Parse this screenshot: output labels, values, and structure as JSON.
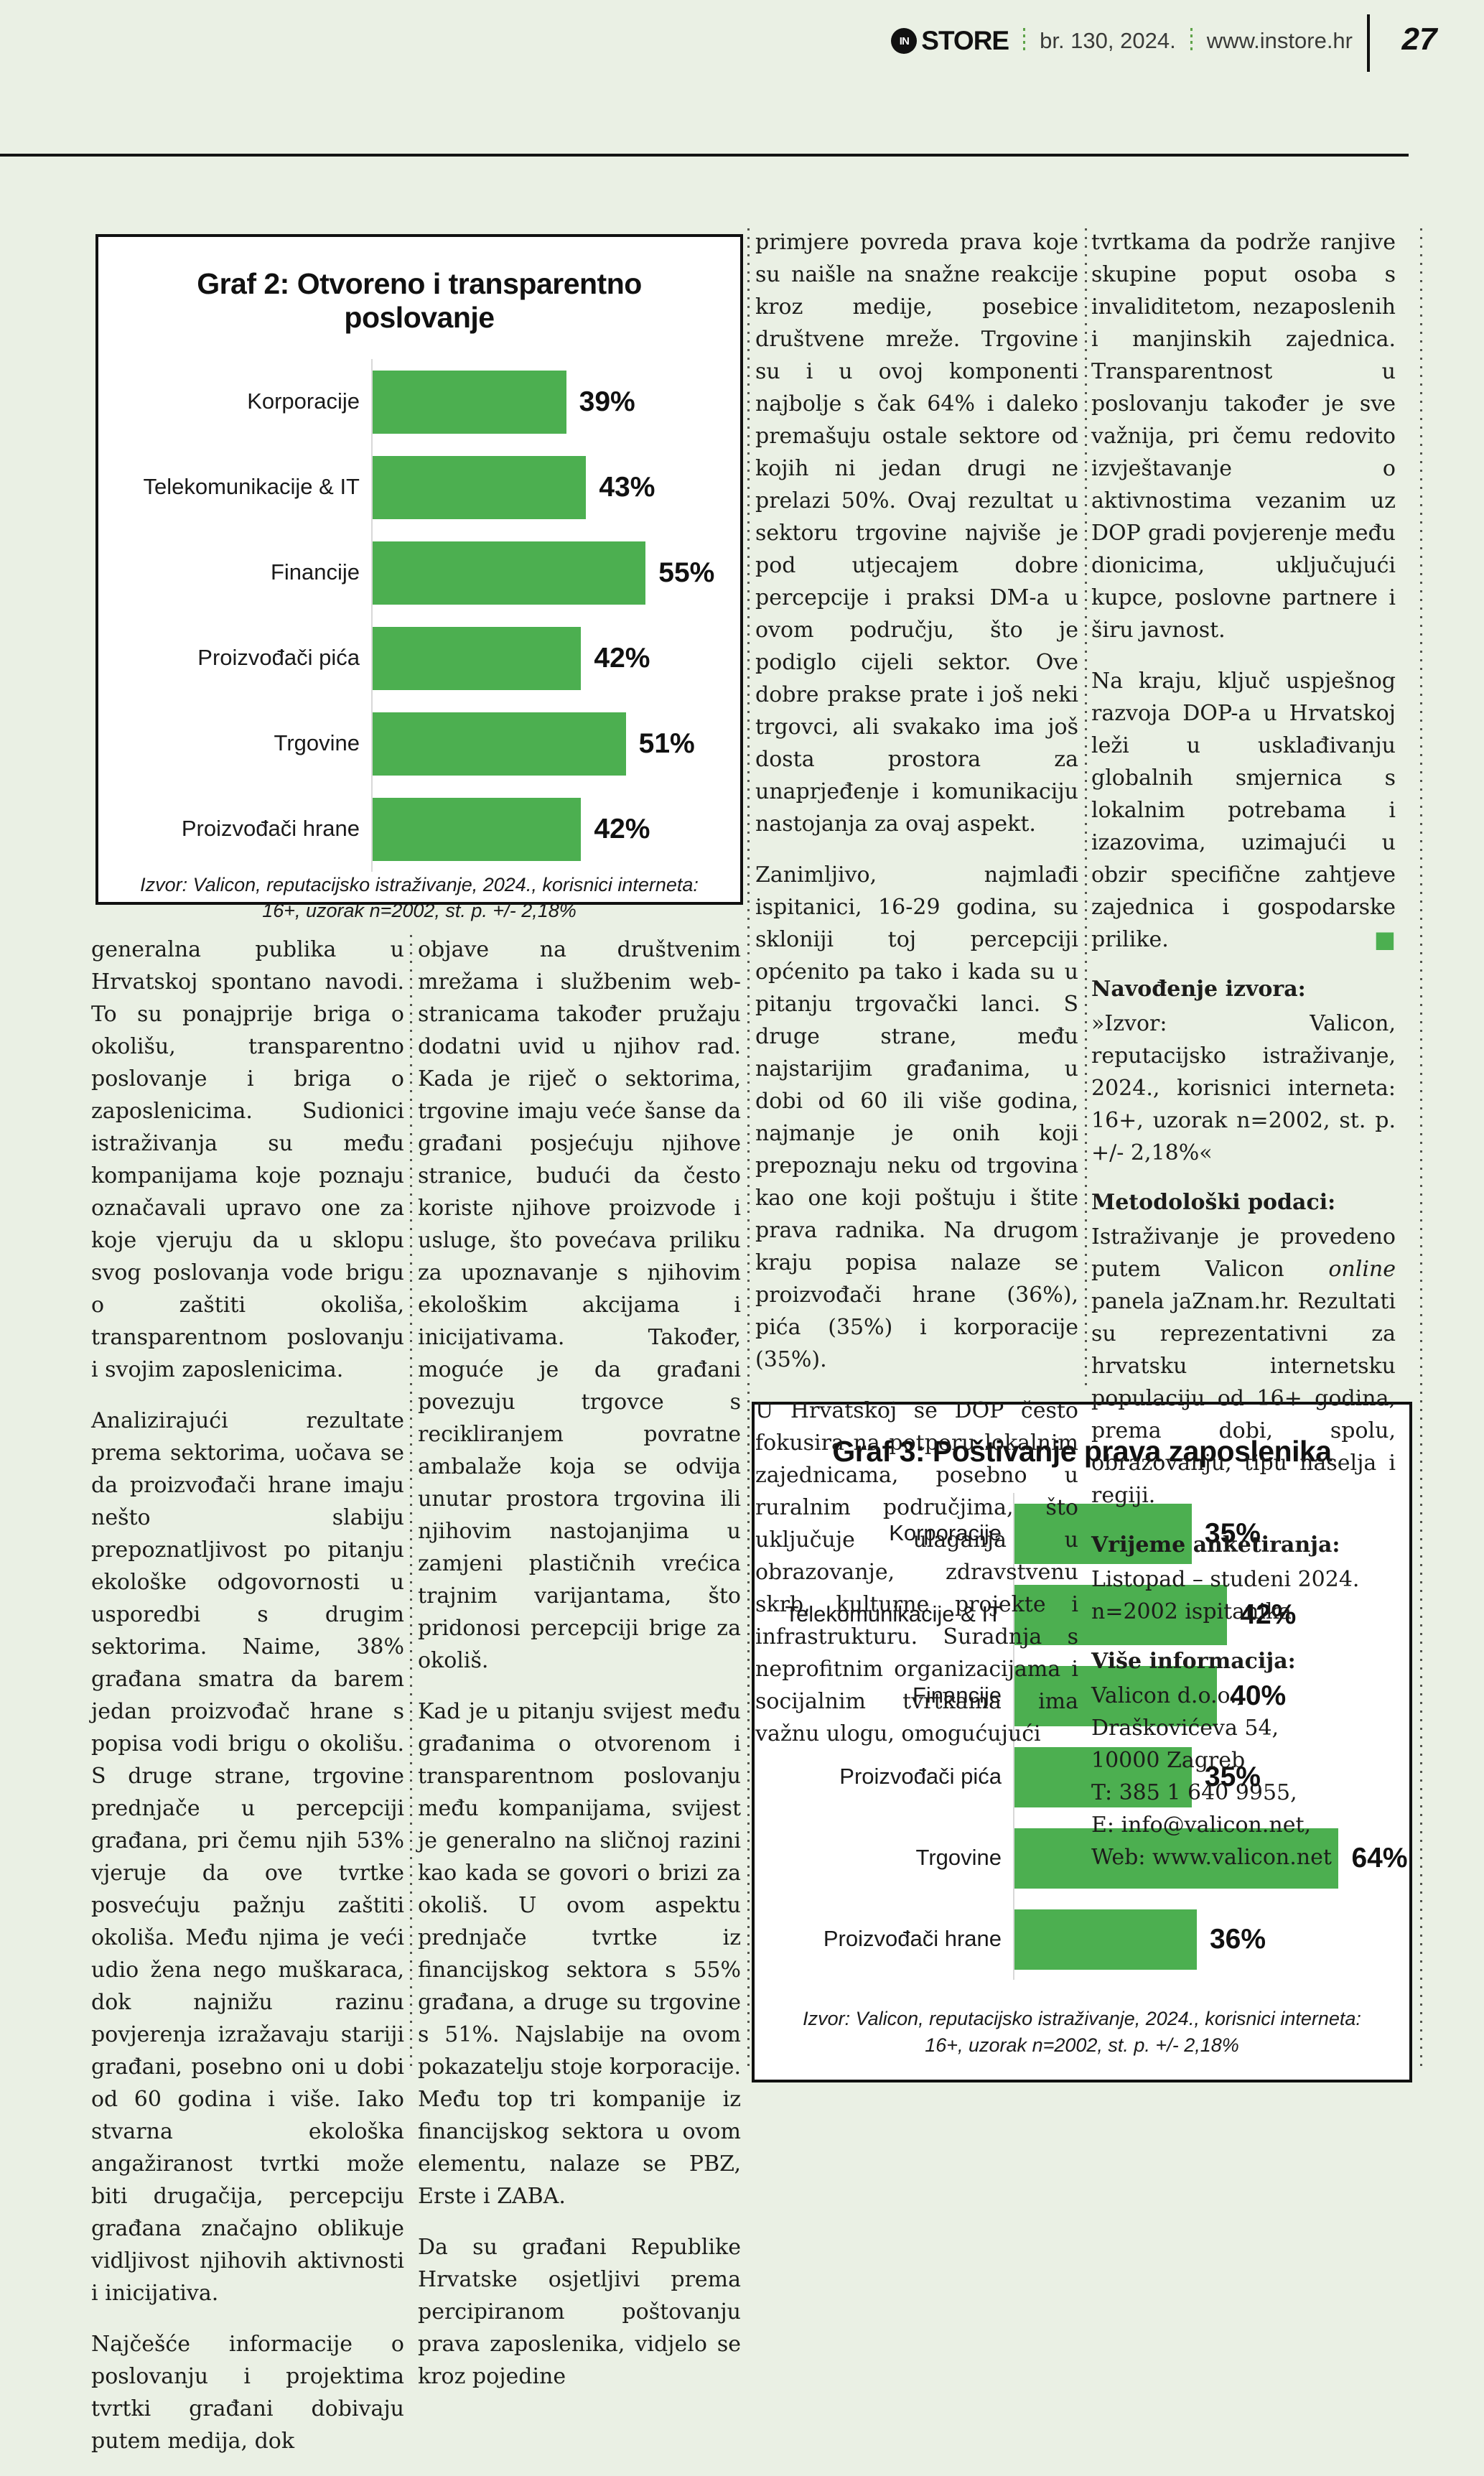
{
  "header": {
    "logo_monogram": "IN",
    "logo_text": "STORE",
    "issue": "br. 130, 2024.",
    "website": "www.instore.hr",
    "page_number": "27"
  },
  "colors": {
    "bar_green": "#4caf50",
    "page_background": "#eaf0e4",
    "end_marker_green": "#4caf50"
  },
  "chart_data": [
    {
      "type": "bar",
      "orientation": "horizontal",
      "title": "Graf 2: Otvoreno i transparentno poslovanje",
      "categories": [
        "Korporacije",
        "Telekomunikacije & IT",
        "Financije",
        "Proizvođači pića",
        "Trgovine",
        "Proizvođači hrane"
      ],
      "values": [
        39,
        43,
        55,
        42,
        51,
        42
      ],
      "unit": "%",
      "xlim": [
        0,
        70
      ],
      "grid": false,
      "legend": "none",
      "bar_color": "#4caf50",
      "source": "Izvor: Valicon, reputacijsko istraživanje, 2024., korisnici interneta: 16+, uzorak n=2002, st. p. +/- 2,18%"
    },
    {
      "type": "bar",
      "orientation": "horizontal",
      "title": "Graf 3: Poštivanje prava zaposlenika",
      "categories": [
        "Korporacije",
        "Telekomunikacije & IT",
        "Financije",
        "Proizvođači pića",
        "Trgovine",
        "Proizvođači hrane"
      ],
      "values": [
        35,
        42,
        40,
        35,
        64,
        36
      ],
      "unit": "%",
      "xlim": [
        0,
        74
      ],
      "grid": false,
      "legend": "none",
      "bar_color": "#4caf50",
      "source": "Izvor: Valicon, reputacijsko istraživanje, 2024., korisnici interneta: 16+, uzorak n=2002, st. p. +/- 2,18%"
    }
  ],
  "article": {
    "columns": [
      {
        "blocks": [
          {
            "type": "p",
            "text": "generalna publika u Hrvatskoj spontano navodi. To su ponajprije briga o okolišu, transparentno poslovanje i briga o zaposlenicima. Sudionici istraživanja su među kompanijama koje poznaju označavali upravo one za koje vjeruju da u sklopu svog poslovanja vode brigu o zaštiti okoliša, transparentnom poslovanju i svojim zaposlenicima."
          },
          {
            "type": "p",
            "text": "Analizirajući rezultate prema sektorima, uočava se da proizvođači hrane imaju nešto slabiju prepoznatljivost po pitanju ekološke odgovornosti u usporedbi s drugim sektorima. Naime, 38% građana smatra da barem jedan proizvođač hrane s popisa vodi brigu o okolišu. S druge strane, trgovine prednjače u percepciji građana, pri čemu njih 53% vjeruje da ove tvrtke posvećuju pažnju zaštiti okoliša. Među njima je veći udio žena nego muškaraca, dok najnižu razinu povjerenja izražavaju stariji građani, posebno oni u dobi od 60 godina i više. Iako stvarna ekološka angažiranost tvrtki može biti drugačija, percepciju građana značajno oblikuje vidljivost njihovih aktivnosti i inicijativa."
          },
          {
            "type": "p",
            "text": "Najčešće informacije o poslovanju i projektima tvrtki građani dobivaju putem medija, dok"
          }
        ]
      },
      {
        "blocks": [
          {
            "type": "p",
            "text": "objave na društvenim mrežama i službenim web-stranicama također pružaju dodatni uvid u njihov rad. Kada je riječ o sektorima, trgovine imaju veće šanse da građani posjećuju njihove stranice, budući da često koriste njihove proizvode i usluge, što povećava priliku za upoznavanje s njihovim ekološkim akcijama i inicijativama. Također, moguće je da građani povezuju trgovce s recikliranjem povratne ambalaže koja se odvija unutar prostora trgovina ili njihovim nastojanjima u zamjeni plastičnih vrećica trajnim varijantama, što pridonosi percepciji brige za okoliš."
          },
          {
            "type": "p",
            "text": "Kad je u pitanju svijest među građanima o otvorenom i transparentnom poslovanju među kompanijama, svijest je generalno na sličnoj razini kao kada se govori o brizi za okoliš. U ovom aspektu prednjače tvrtke iz financijskog sektora s 55% građana, a druge su trgovine s 51%. Najslabije na ovom pokazatelju stoje korporacije. Među top tri kompanije iz financijskog sektora u ovom elementu, nalaze se PBZ, Erste i ZABA."
          },
          {
            "type": "p",
            "text": "Da su građani Republike Hrvatske osjetljivi prema percipiranom poštovanju prava zaposlenika, vidjelo se kroz pojedine"
          }
        ]
      },
      {
        "blocks": [
          {
            "type": "p",
            "text": "primjere povreda prava koje su naišle na snažne reakcije kroz medije, posebice društvene mreže. Trgovine su i u ovoj komponenti najbolje s čak 64% i daleko premašuju ostale sektore od kojih ni jedan drugi ne prelazi 50%. Ovaj rezultat u sektoru trgovine najviše je pod utjecajem dobre percepcije i praksi DM-a u ovom području, što je podiglo cijeli sektor. Ove dobre prakse prate i još neki trgovci, ali svakako ima još dosta prostora za unaprjeđenje i komunikaciju nastojanja za ovaj aspekt."
          },
          {
            "type": "p",
            "text": "Zanimljivo, najmlađi ispitanici, 16-29 godina, su skloniji toj percepciji općenito pa tako i kada su u pitanju trgovački lanci. S druge strane, među najstarijim građanima, u dobi od 60 ili više godina, najmanje je onih koji prepoznaju neku od trgovina kao one koji poštuju i štite prava radnika. Na drugom kraju popisa nalaze se proizvođači hrane (36%), pića (35%) i korporacije (35%)."
          },
          {
            "type": "p",
            "text": "U Hrvatskoj se DOP često fokusira na potporu lokalnim zajednicama, posebno u ruralnim područjima, što uključuje ulaganja u obrazovanje, zdravstvenu skrb, kulturne projekte i infrastrukturu. Suradnja s neprofitnim organizacijama i socijalnim tvrtkama ima važnu ulogu, omogućujući"
          }
        ]
      },
      {
        "blocks": [
          {
            "type": "p",
            "text": "tvrtkama da podrže ranjive skupine poput osoba s invaliditetom, nezaposlenih i manjinskih zajednica. Transparentnost u poslovanju također je sve važnija, pri čemu redovito izvještavanje o aktivnostima vezanim uz DOP gradi povjerenje među dionicima, uključujući kupce, poslovne partnere i širu javnost."
          },
          {
            "type": "p",
            "text": "Na kraju, ključ uspješnog razvoja DOP-a u Hrvatskoj leži u usklađivanju globalnih smjernica s lokalnim potrebama i izazovima, uzimajući u obzir specifične zahtjeve zajednica i gospodarske prilike.",
            "end_marker": "■"
          },
          {
            "type": "h",
            "text": "Navođenje izvora:"
          },
          {
            "type": "p",
            "text": "»Izvor: Valicon, reputacijsko istraživanje, 2024., korisnici interneta: 16+, uzorak n=2002, st. p. +/- 2,18%«"
          },
          {
            "type": "h",
            "text": "Metodološki podaci:"
          },
          {
            "type": "rich",
            "segments": [
              {
                "text": "Istraživanje je provedeno putem Valicon "
              },
              {
                "text": "online",
                "italic": true
              },
              {
                "text": " panela jaZnam.hr. Rezultati su reprezentativni za hrvatsku internetsku populaciju od 16+ godina, prema dobi, spolu, obrazovanju, tipu naselja i regiji."
              }
            ]
          },
          {
            "type": "h",
            "text": "Vrijeme anketiranja:"
          },
          {
            "type": "pre",
            "text": "Listopad – studeni 2024.\nn=2002 ispitanika"
          },
          {
            "type": "h",
            "text": "Više informacija:"
          },
          {
            "type": "pre",
            "text": "Valicon d.o.o., Draškovićeva 54,\n10000 Zagreb\nT: 385 1 640 9955,\nE: info@valicon.net,\nWeb: www.valicon.net"
          }
        ]
      }
    ]
  }
}
